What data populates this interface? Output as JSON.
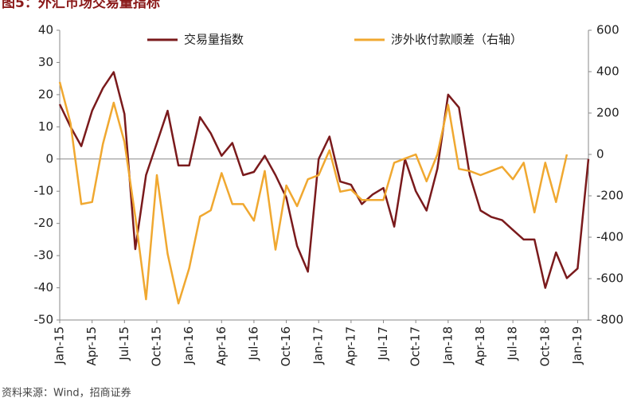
{
  "chart_data": {
    "type": "line",
    "title": "图5：外汇市场交易量指标",
    "source": "资料来源：Wind，招商证券",
    "legend": "top",
    "categories": [
      "Jan-15",
      null,
      null,
      "Apr-15",
      null,
      null,
      "Jul-15",
      null,
      null,
      "Oct-15",
      null,
      null,
      "Jan-16",
      null,
      null,
      "Apr-16",
      null,
      null,
      "Jul-16",
      null,
      null,
      "Oct-16",
      null,
      null,
      "Jan-17",
      null,
      null,
      "Apr-17",
      null,
      null,
      "Jul-17",
      null,
      null,
      "Oct-17",
      null,
      null,
      "Jan-18",
      null,
      null,
      "Apr-18",
      null,
      null,
      "Jul-18",
      null,
      null,
      "Oct-18",
      null,
      null,
      "Jan-19",
      null
    ],
    "series": [
      {
        "name": "交易量指数",
        "color": "#7a1a1c",
        "values": [
          17,
          10,
          4,
          15,
          22,
          27,
          14,
          -28,
          -5,
          5,
          15,
          -2,
          -2,
          13,
          8,
          1,
          5,
          -5,
          -4,
          1,
          -5,
          -12,
          -27,
          -35,
          0,
          7,
          -7,
          -8,
          -14,
          -11,
          -9,
          -21,
          0,
          -10,
          -16,
          -3,
          20,
          16,
          -5,
          -16,
          -18,
          -19,
          -22,
          -25,
          -25,
          -40,
          -29,
          -37,
          -34,
          0
        ]
      },
      {
        "name": "涉外收付款顺差（右轴）",
        "color": "#f0a830",
        "axis": "y2",
        "values": [
          350,
          150,
          -240,
          -230,
          50,
          250,
          60,
          -300,
          -700,
          -100,
          -480,
          -720,
          -550,
          -300,
          -270,
          -90,
          -240,
          -240,
          -320,
          -80,
          -460,
          -150,
          -250,
          -120,
          -100,
          20,
          -180,
          -170,
          -220,
          -220,
          -220,
          -40,
          -20,
          0,
          -130,
          0,
          240,
          -70,
          -80,
          -100,
          -80,
          -60,
          -120,
          -40,
          -280,
          -40,
          -230,
          0,
          null,
          null
        ]
      }
    ],
    "ylim": [
      -50,
      40
    ],
    "yticks": [
      -50,
      -40,
      -30,
      -20,
      -10,
      0,
      10,
      20,
      30,
      40
    ],
    "y2lim": [
      -800,
      600
    ],
    "y2ticks": [
      -800,
      -600,
      -400,
      -200,
      0,
      200,
      400,
      600
    ]
  }
}
